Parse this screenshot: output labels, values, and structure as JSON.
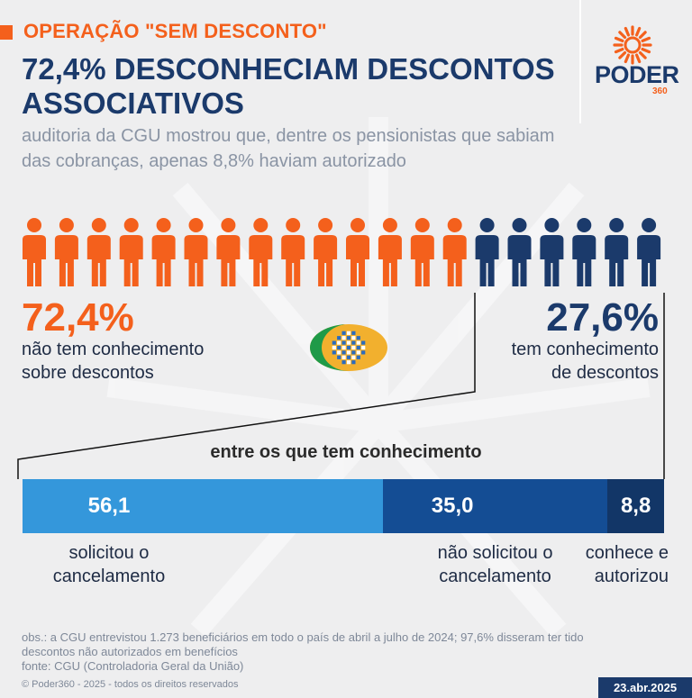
{
  "header": {
    "tagline": "OPERAÇÃO \"SEM DESCONTO\"",
    "headline": "72,4% DESCONHECIAM DESCONTOS ASSOCIATIVOS",
    "subheadline": "auditoria da CGU mostrou que, dentre os pensionistas que sabiam das cobranças, apenas 8,8% haviam autorizado"
  },
  "brand": {
    "name": "PODER",
    "number": "360"
  },
  "colors": {
    "orange": "#f4601c",
    "navy": "#1b3a6b",
    "light_blue": "#3497db",
    "mid_blue": "#144d94",
    "dark_blue": "#123667"
  },
  "icons": {
    "person": "person-icon",
    "institution": "inss-logo"
  },
  "split": {
    "left_value": "72,4%",
    "left_label_line1": "não tem conhecimento",
    "left_label_line2": "sobre descontos",
    "right_value": "27,6%",
    "right_label_line1": "tem conhecimento",
    "right_label_line2": "de descontos"
  },
  "chart_data": [
    {
      "type": "pictogram",
      "total_icons": 20,
      "series": [
        {
          "name": "não tem conhecimento sobre descontos",
          "value": 72.4,
          "icons": 14,
          "color": "#f4601c"
        },
        {
          "name": "tem conhecimento de descontos",
          "value": 27.6,
          "icons": 6,
          "color": "#1b3a6b"
        }
      ]
    },
    {
      "type": "bar",
      "orientation": "horizontal-stacked-100",
      "title": "entre os que tem conhecimento",
      "categories": [
        "solicitou o cancelamento",
        "não solicitou o cancelamento",
        "conhece e autorizou"
      ],
      "values": [
        56.1,
        35.0,
        8.8
      ],
      "value_labels": [
        "56,1",
        "35,0",
        "8,8"
      ],
      "label_lines": [
        [
          "solicitou o",
          "cancelamento"
        ],
        [
          "não solicitou o",
          "cancelamento"
        ],
        [
          "conhece e",
          "autorizou"
        ]
      ],
      "colors": [
        "#3497db",
        "#144d94",
        "#123667"
      ]
    }
  ],
  "footer": {
    "obs_line1": "obs.: a CGU entrevistou 1.273 beneficiários em todo o país de abril a julho de 2024; 97,6% disseram ter tido",
    "obs_line2": "descontos não autorizados em benefícios",
    "source": "fonte: CGU (Controladoria Geral da União)",
    "copyright": "© Poder360 - 2025 - todos os direitos reservados",
    "date": "23.abr.2025"
  }
}
